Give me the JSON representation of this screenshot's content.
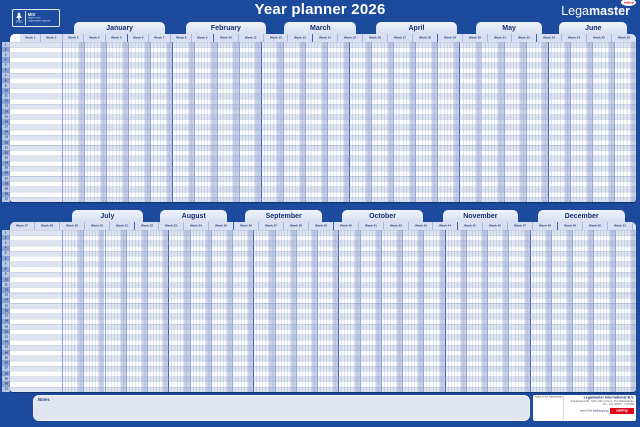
{
  "title": "Year planner 2026",
  "brand": {
    "name_light": "Lega",
    "name_bold": "master",
    "oval_text": "edding"
  },
  "fsc": {
    "tree_label": "FSC",
    "mix": "MIX",
    "line1": "Paper from",
    "line2": "responsible sources"
  },
  "week_label_prefix": "Week",
  "row_numbers": [
    1,
    2,
    3,
    4,
    5,
    6,
    7,
    8,
    9,
    10,
    11,
    12,
    13,
    14,
    15,
    16,
    17,
    18,
    19,
    20,
    21,
    22,
    23,
    24,
    25,
    26,
    27,
    28,
    29,
    30,
    31
  ],
  "halves": [
    {
      "months": [
        {
          "name": "January",
          "weeks": [
            1,
            2,
            3,
            4,
            5
          ]
        },
        {
          "name": "February",
          "weeks": [
            6,
            7,
            8,
            9
          ]
        },
        {
          "name": "March",
          "weeks": [
            10,
            11,
            12,
            13
          ]
        },
        {
          "name": "April",
          "weeks": [
            14,
            15,
            16,
            17,
            18
          ]
        },
        {
          "name": "May",
          "weeks": [
            19,
            20,
            21,
            22
          ]
        },
        {
          "name": "June",
          "weeks": [
            23,
            24,
            25,
            26
          ]
        }
      ]
    },
    {
      "months": [
        {
          "name": "July",
          "weeks": [
            27,
            28,
            29,
            30,
            31
          ]
        },
        {
          "name": "August",
          "weeks": [
            32,
            33,
            34,
            35
          ]
        },
        {
          "name": "September",
          "weeks": [
            36,
            37,
            38,
            39
          ]
        },
        {
          "name": "October",
          "weeks": [
            40,
            41,
            42,
            43,
            44
          ]
        },
        {
          "name": "November",
          "weeks": [
            45,
            46,
            47,
            48
          ]
        },
        {
          "name": "December",
          "weeks": [
            49,
            50,
            51,
            52,
            53
          ]
        }
      ]
    }
  ],
  "days_per_week": 7,
  "weekend_days": 2,
  "notes_label": "Notes",
  "watermark": "2026",
  "footer": {
    "made_in": "Made in the Netherlands",
    "company": "Legamaster International B.V.",
    "address1": "Kwinkweerd 62, 7241 CW Lochem, The Netherlands",
    "address2": "Tel.: +31 (0)573 - 713 000",
    "group": "part of the edding group",
    "edding_label": "edding"
  },
  "colors": {
    "page_bg": "#1c4a9c",
    "tab_fill": "#d7def0",
    "weekend_fill": "#c9d3ea",
    "accent_red": "#e2001a",
    "navy_text": "#14306e"
  }
}
